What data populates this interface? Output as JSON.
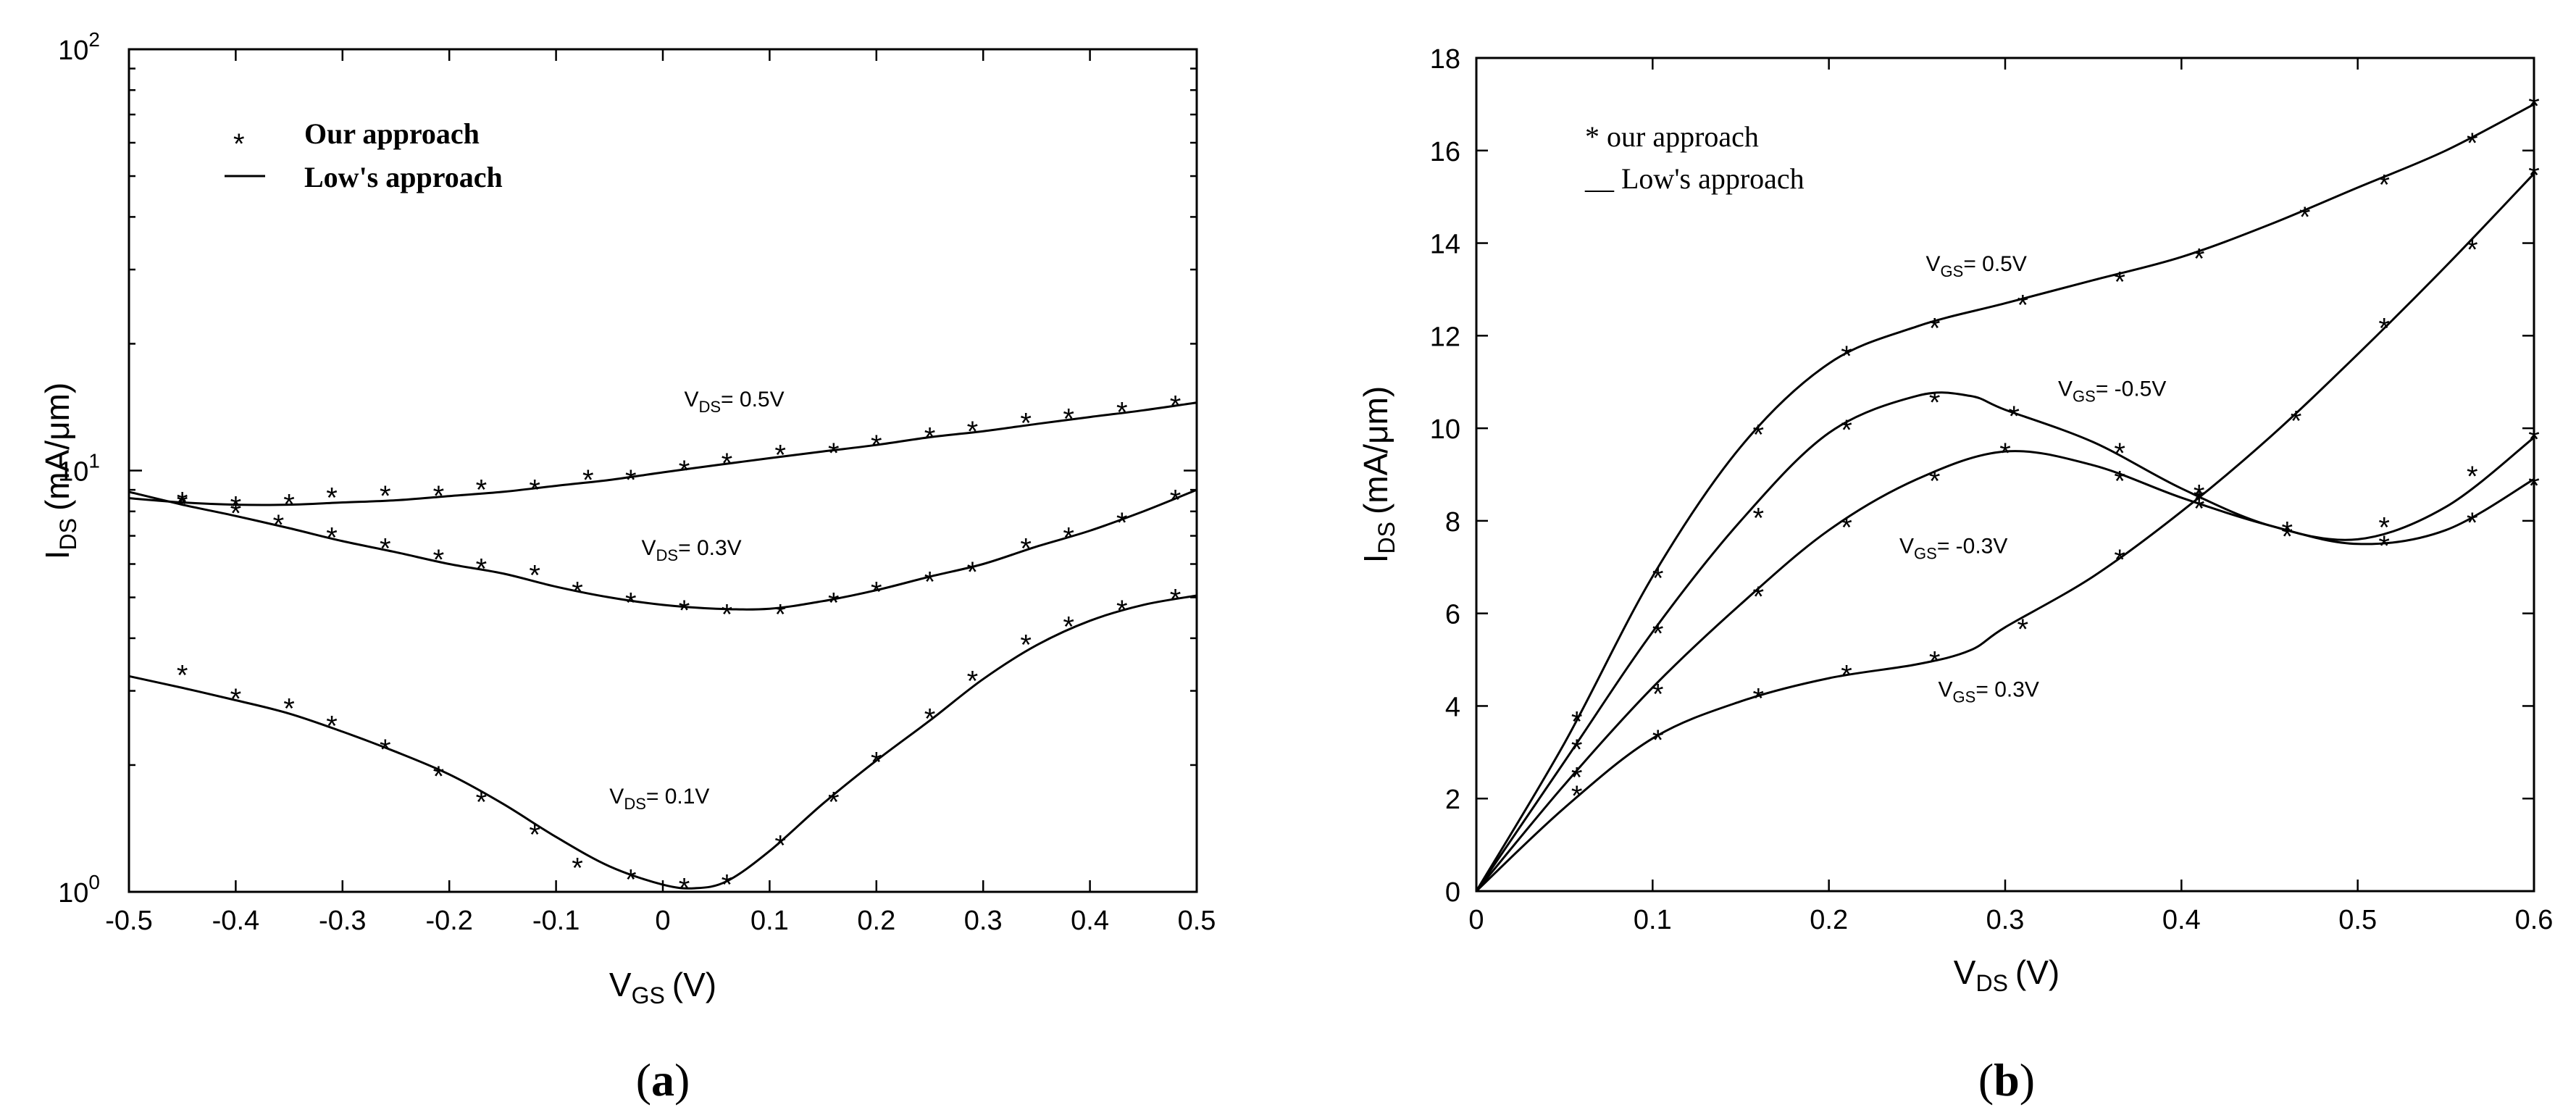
{
  "chart_data": [
    {
      "type": "line",
      "panel": "a",
      "panel_label": "a",
      "xlabel": "V",
      "xlabel_sub": "GS",
      "xlabel_unit": "(V)",
      "ylabel": "I",
      "ylabel_sub": "DS",
      "ylabel_unit": "(mA/μm)",
      "yscale": "log",
      "xlim": [
        -0.5,
        0.5
      ],
      "ylim": [
        1,
        100
      ],
      "xticks": [
        -0.5,
        -0.4,
        -0.3,
        -0.2,
        -0.1,
        0,
        0.1,
        0.2,
        0.3,
        0.4,
        0.5
      ],
      "xtick_labels": [
        "-0.5",
        "-0.4",
        "-0.3",
        "-0.2",
        "-0.1",
        "0",
        "0.1",
        "0.2",
        "0.3",
        "0.4",
        "0.5"
      ],
      "yticks": [
        1,
        10,
        100
      ],
      "ytick_base": "10",
      "ytick_exponents": [
        "0",
        "1",
        "2"
      ],
      "legend": {
        "marker_symbol": "*",
        "marker_label": "Our approach",
        "line_symbol": "—",
        "line_label": "Low's approach"
      },
      "series": [
        {
          "name": "VDS = 0.5V",
          "annotation_main": "V",
          "annotation_sub": "DS",
          "annotation_value": "= 0.5V",
          "annotation_at": [
            0.02,
            14.2
          ],
          "line_x": [
            -0.5,
            -0.45,
            -0.4,
            -0.35,
            -0.3,
            -0.25,
            -0.2,
            -0.15,
            -0.1,
            -0.05,
            0,
            0.05,
            0.1,
            0.15,
            0.2,
            0.25,
            0.3,
            0.35,
            0.4,
            0.45,
            0.5
          ],
          "line_y": [
            8.6,
            8.4,
            8.3,
            8.3,
            8.4,
            8.5,
            8.7,
            8.9,
            9.2,
            9.5,
            9.9,
            10.3,
            10.7,
            11.1,
            11.5,
            12.0,
            12.4,
            12.9,
            13.4,
            13.9,
            14.5
          ],
          "points_x": [
            -0.45,
            -0.4,
            -0.35,
            -0.31,
            -0.26,
            -0.21,
            -0.17,
            -0.12,
            -0.07,
            -0.03,
            0.02,
            0.06,
            0.11,
            0.16,
            0.2,
            0.25,
            0.29,
            0.34,
            0.38,
            0.43,
            0.48
          ],
          "points_y": [
            8.5,
            8.3,
            8.4,
            8.7,
            8.8,
            8.8,
            9.1,
            9.1,
            9.6,
            9.6,
            10.1,
            10.5,
            11.0,
            11.1,
            11.6,
            12.1,
            12.5,
            13.1,
            13.4,
            13.9,
            14.4
          ]
        },
        {
          "name": "VDS = 0.3V",
          "annotation_main": "V",
          "annotation_sub": "DS",
          "annotation_value": "= 0.3V",
          "annotation_at": [
            -0.02,
            6.3
          ],
          "line_x": [
            -0.5,
            -0.45,
            -0.4,
            -0.35,
            -0.3,
            -0.25,
            -0.2,
            -0.15,
            -0.1,
            -0.05,
            0,
            0.05,
            0.1,
            0.15,
            0.2,
            0.25,
            0.3,
            0.35,
            0.4,
            0.45,
            0.5
          ],
          "line_y": [
            8.9,
            8.3,
            7.8,
            7.3,
            6.8,
            6.4,
            6.0,
            5.7,
            5.3,
            5.0,
            4.8,
            4.7,
            4.7,
            4.9,
            5.2,
            5.6,
            6.0,
            6.6,
            7.2,
            8.0,
            9.0
          ],
          "points_x": [
            -0.45,
            -0.4,
            -0.36,
            -0.31,
            -0.26,
            -0.21,
            -0.17,
            -0.12,
            -0.08,
            -0.03,
            0.02,
            0.06,
            0.11,
            0.16,
            0.2,
            0.25,
            0.29,
            0.34,
            0.38,
            0.43,
            0.48
          ],
          "points_y": [
            8.4,
            8.0,
            7.5,
            7.0,
            6.6,
            6.2,
            5.9,
            5.7,
            5.2,
            4.9,
            4.7,
            4.6,
            4.6,
            4.9,
            5.2,
            5.5,
            5.8,
            6.6,
            7.0,
            7.6,
            8.6
          ]
        },
        {
          "name": "VDS = 0.1V",
          "annotation_main": "V",
          "annotation_sub": "DS",
          "annotation_value": "= 0.1V",
          "annotation_at": [
            -0.05,
            1.62
          ],
          "line_x": [
            -0.5,
            -0.45,
            -0.4,
            -0.35,
            -0.3,
            -0.25,
            -0.2,
            -0.15,
            -0.1,
            -0.05,
            0,
            0.03,
            0.06,
            0.1,
            0.15,
            0.2,
            0.25,
            0.3,
            0.35,
            0.4,
            0.45,
            0.5
          ],
          "line_y": [
            3.25,
            3.05,
            2.85,
            2.65,
            2.4,
            2.15,
            1.9,
            1.62,
            1.35,
            1.15,
            1.04,
            1.02,
            1.06,
            1.25,
            1.62,
            2.05,
            2.55,
            3.2,
            3.85,
            4.4,
            4.8,
            5.05
          ],
          "points_x": [
            -0.45,
            -0.4,
            -0.35,
            -0.31,
            -0.26,
            -0.21,
            -0.17,
            -0.12,
            -0.08,
            -0.03,
            0.02,
            0.06,
            0.11,
            0.16,
            0.2,
            0.25,
            0.29,
            0.34,
            0.38,
            0.43,
            0.48
          ],
          "points_y": [
            3.3,
            2.9,
            2.75,
            2.5,
            2.2,
            1.9,
            1.65,
            1.38,
            1.15,
            1.08,
            1.03,
            1.05,
            1.3,
            1.65,
            2.05,
            2.6,
            3.2,
            3.9,
            4.3,
            4.7,
            5.0
          ]
        }
      ]
    },
    {
      "type": "line",
      "panel": "b",
      "panel_label": "b",
      "xlabel": "V",
      "xlabel_sub": "DS",
      "xlabel_unit": "(V)",
      "ylabel": "I",
      "ylabel_sub": "DS",
      "ylabel_unit": "(mA/μm)",
      "xlim": [
        0,
        0.6
      ],
      "ylim": [
        0,
        18
      ],
      "xticks": [
        0,
        0.1,
        0.2,
        0.3,
        0.4,
        0.5,
        0.6
      ],
      "xtick_labels": [
        "0",
        "0.1",
        "0.2",
        "0.3",
        "0.4",
        "0.5",
        "0.6"
      ],
      "yticks": [
        0,
        2,
        4,
        6,
        8,
        10,
        12,
        14,
        16,
        18
      ],
      "ytick_labels": [
        "0",
        "2",
        "4",
        "6",
        "8",
        "10",
        "12",
        "14",
        "16",
        "18"
      ],
      "legend": {
        "marker_label": "* our approach",
        "line_label": "__ Low's approach"
      },
      "series": [
        {
          "name": "VGS = 0.5V",
          "annotation_main": "V",
          "annotation_sub": "GS",
          "annotation_value": "= 0.5V",
          "annotation_at": [
            0.255,
            13.4
          ],
          "line_x": [
            0,
            0.05,
            0.1,
            0.15,
            0.2,
            0.25,
            0.3,
            0.35,
            0.4,
            0.45,
            0.5,
            0.55,
            0.6
          ],
          "line_y": [
            0,
            3.2,
            6.8,
            9.6,
            11.4,
            12.2,
            12.7,
            13.2,
            13.7,
            14.4,
            15.2,
            16.0,
            17.0
          ],
          "points_x": [
            0.057,
            0.103,
            0.16,
            0.21,
            0.26,
            0.31,
            0.365,
            0.41,
            0.47,
            0.515,
            0.565,
            0.6
          ],
          "points_y": [
            3.7,
            6.8,
            9.9,
            11.6,
            12.2,
            12.7,
            13.2,
            13.7,
            14.6,
            15.3,
            16.2,
            17.0
          ]
        },
        {
          "name": "VGS = -0.5V",
          "annotation_main": "V",
          "annotation_sub": "GS",
          "annotation_value": "= -0.5V",
          "annotation_at": [
            0.33,
            10.7
          ],
          "line_x": [
            0,
            0.05,
            0.1,
            0.15,
            0.2,
            0.25,
            0.28,
            0.3,
            0.35,
            0.4,
            0.45,
            0.5,
            0.55,
            0.6
          ],
          "line_y": [
            0,
            2.8,
            5.6,
            8.0,
            9.9,
            10.7,
            10.7,
            10.4,
            9.7,
            8.7,
            7.9,
            7.6,
            8.3,
            9.8
          ],
          "points_x": [
            0.057,
            0.103,
            0.16,
            0.21,
            0.26,
            0.305,
            0.365,
            0.41,
            0.46,
            0.515,
            0.565,
            0.6
          ],
          "points_y": [
            3.1,
            5.6,
            8.1,
            10.0,
            10.6,
            10.3,
            9.5,
            8.6,
            7.8,
            7.9,
            9.0,
            9.8
          ]
        },
        {
          "name": "VGS = -0.3V",
          "annotation_main": "V",
          "annotation_sub": "GS",
          "annotation_value": "= -0.3V",
          "annotation_at": [
            0.24,
            7.3
          ],
          "line_x": [
            0,
            0.05,
            0.1,
            0.15,
            0.2,
            0.25,
            0.3,
            0.35,
            0.4,
            0.45,
            0.5,
            0.55,
            0.6
          ],
          "line_y": [
            0,
            2.3,
            4.4,
            6.2,
            7.8,
            8.9,
            9.5,
            9.2,
            8.5,
            7.9,
            7.5,
            7.8,
            8.9
          ],
          "points_x": [
            0.057,
            0.103,
            0.16,
            0.21,
            0.26,
            0.3,
            0.365,
            0.41,
            0.46,
            0.515,
            0.565,
            0.6
          ],
          "points_y": [
            2.5,
            4.3,
            6.4,
            7.9,
            8.9,
            9.5,
            8.9,
            8.5,
            7.7,
            7.5,
            8.0,
            8.8
          ]
        },
        {
          "name": "VGS = 0.3V",
          "annotation_main": "V",
          "annotation_sub": "GS",
          "annotation_value": "= 0.3V",
          "annotation_at": [
            0.262,
            4.2
          ],
          "line_x": [
            0,
            0.05,
            0.1,
            0.15,
            0.2,
            0.25,
            0.28,
            0.3,
            0.35,
            0.4,
            0.45,
            0.5,
            0.55,
            0.6
          ],
          "line_y": [
            0,
            1.8,
            3.3,
            4.1,
            4.6,
            4.9,
            5.2,
            5.7,
            6.8,
            8.2,
            9.8,
            11.6,
            13.5,
            15.5
          ],
          "points_x": [
            0.057,
            0.103,
            0.16,
            0.21,
            0.26,
            0.31,
            0.365,
            0.41,
            0.465,
            0.515,
            0.565,
            0.6
          ],
          "points_y": [
            2.1,
            3.3,
            4.2,
            4.7,
            5.0,
            5.7,
            7.2,
            8.3,
            10.2,
            12.2,
            13.9,
            15.5
          ]
        }
      ]
    }
  ]
}
